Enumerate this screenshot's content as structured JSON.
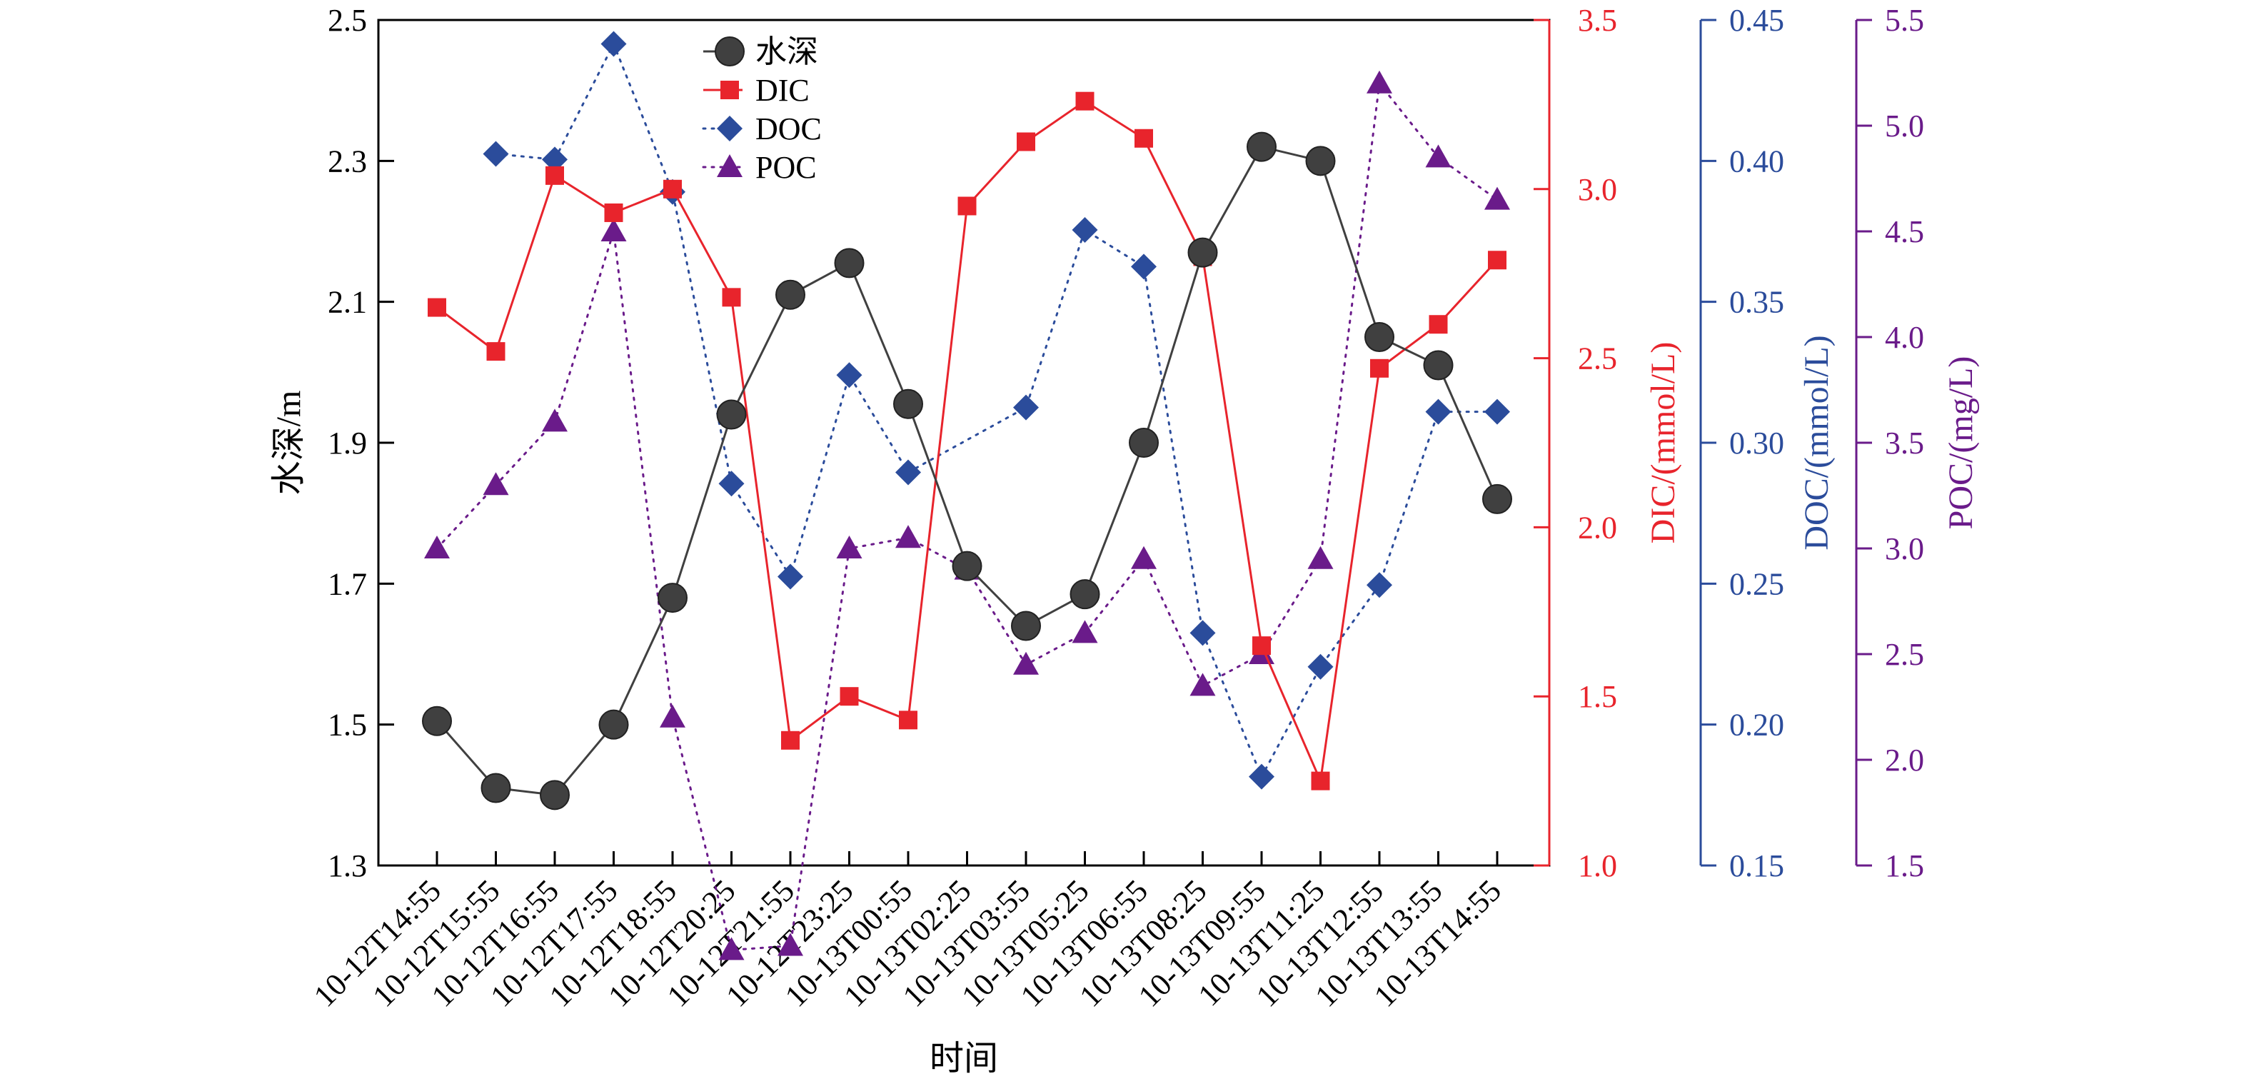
{
  "chart_data": {
    "type": "line",
    "categories": [
      "10-12T14:55",
      "10-12T15:55",
      "10-12T16:55",
      "10-12T17:55",
      "10-12T18:55",
      "10-12T20:25",
      "10-12T21:55",
      "10-12T23:25",
      "10-13T00:55",
      "10-13T02:25",
      "10-13T03:55",
      "10-13T05:25",
      "10-13T06:55",
      "10-13T08:25",
      "10-13T09:55",
      "10-13T11:25",
      "10-13T12:55",
      "10-13T13:55",
      "10-13T14:55"
    ],
    "xlabel": "时间",
    "axes": {
      "depth": {
        "label": "水深/m",
        "min": 1.3,
        "max": 2.5,
        "ticks": [
          "1.3",
          "1.5",
          "1.7",
          "1.9",
          "2.1",
          "2.3",
          "2.5"
        ],
        "color": "#000000"
      },
      "dic": {
        "label": "DIC/(mmol/L)",
        "min": 1.0,
        "max": 3.5,
        "ticks": [
          "1.0",
          "1.5",
          "2.0",
          "2.5",
          "3.0",
          "3.5"
        ],
        "color": "#e8242c"
      },
      "doc": {
        "label": "DOC/(mmol/L)",
        "min": 0.15,
        "max": 0.45,
        "ticks": [
          "0.15",
          "0.20",
          "0.25",
          "0.30",
          "0.35",
          "0.40",
          "0.45"
        ],
        "color": "#2b4c9b"
      },
      "poc": {
        "label": "POC/(mg/L)",
        "min": 1.5,
        "max": 5.5,
        "ticks": [
          "1.5",
          "2.0",
          "2.5",
          "3.0",
          "3.5",
          "4.0",
          "4.5",
          "5.0",
          "5.5"
        ],
        "color": "#6a1b8a"
      }
    },
    "series": [
      {
        "name": "水深",
        "axis": "depth",
        "marker": "circle",
        "line": "solid",
        "color": "#404040",
        "values": [
          1.505,
          1.41,
          1.4,
          1.5,
          1.68,
          1.94,
          2.11,
          2.155,
          1.955,
          1.725,
          1.64,
          1.685,
          1.9,
          2.17,
          2.32,
          2.3,
          2.05,
          2.01,
          1.82
        ]
      },
      {
        "name": "DIC",
        "axis": "dic",
        "marker": "square",
        "line": "solid",
        "color": "#e8242c",
        "values": [
          2.65,
          2.52,
          3.04,
          2.93,
          3.0,
          2.68,
          1.37,
          1.5,
          1.43,
          2.95,
          3.14,
          3.26,
          3.15,
          2.8,
          1.65,
          1.25,
          2.47,
          2.6,
          2.79
        ]
      },
      {
        "name": "DOC",
        "axis": "doc",
        "marker": "diamond",
        "line": "dotted",
        "color": "#2b4c9b",
        "values": [
          null,
          0.4025,
          0.4005,
          0.4415,
          0.389,
          0.2855,
          0.2525,
          0.324,
          0.2895,
          null,
          0.3125,
          0.3755,
          0.3625,
          0.2325,
          0.1815,
          0.2205,
          0.2495,
          0.311,
          0.311
        ]
      },
      {
        "name": "POC",
        "axis": "poc",
        "marker": "triangle",
        "line": "dotted",
        "color": "#6a1b8a",
        "values": [
          3.0,
          3.3,
          3.6,
          4.5,
          2.2,
          1.1,
          1.12,
          3.0,
          3.05,
          2.9,
          2.45,
          2.6,
          2.95,
          2.35,
          2.5,
          2.95,
          5.2,
          4.85,
          4.65
        ]
      }
    ],
    "legend": {
      "placement": "top-left-inside"
    }
  }
}
